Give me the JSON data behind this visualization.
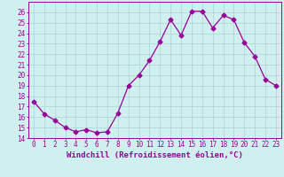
{
  "x": [
    0,
    1,
    2,
    3,
    4,
    5,
    6,
    7,
    8,
    9,
    10,
    11,
    12,
    13,
    14,
    15,
    16,
    17,
    18,
    19,
    20,
    21,
    22,
    23
  ],
  "y": [
    17.5,
    16.3,
    15.7,
    15.0,
    14.6,
    14.8,
    14.5,
    14.6,
    16.4,
    19.0,
    20.0,
    21.4,
    23.2,
    25.3,
    23.8,
    26.1,
    26.1,
    24.5,
    25.7,
    25.3,
    23.1,
    21.8,
    19.6,
    19.0
  ],
  "line_color": "#990099",
  "marker": "D",
  "marker_size": 2.5,
  "bg_color": "#d0f0f0",
  "grid_color": "#b0d8d8",
  "xlabel": "Windchill (Refroidissement éolien,°C)",
  "ylim": [
    14,
    27
  ],
  "xlim": [
    -0.5,
    23.5
  ],
  "yticks": [
    14,
    15,
    16,
    17,
    18,
    19,
    20,
    21,
    22,
    23,
    24,
    25,
    26
  ],
  "xticks": [
    0,
    1,
    2,
    3,
    4,
    5,
    6,
    7,
    8,
    9,
    10,
    11,
    12,
    13,
    14,
    15,
    16,
    17,
    18,
    19,
    20,
    21,
    22,
    23
  ],
  "font_color": "#990099",
  "tick_fontsize": 5.5,
  "label_fontsize": 6.5
}
